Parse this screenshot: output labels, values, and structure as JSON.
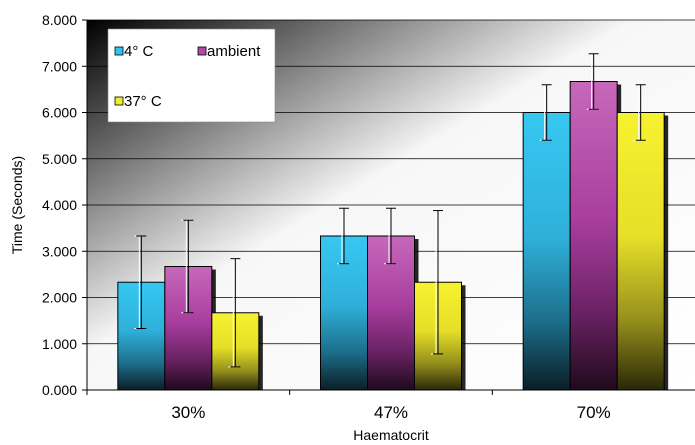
{
  "chart_data": {
    "type": "bar",
    "title": "",
    "xlabel": "Haematocrit",
    "ylabel": "Time (Seconds)",
    "ylim": [
      0,
      8
    ],
    "yticks": [
      "0.000",
      "1.000",
      "2.000",
      "3.000",
      "4.000",
      "5.000",
      "6.000",
      "7.000",
      "8.000"
    ],
    "categories": [
      "30%",
      "47%",
      "70%"
    ],
    "grid": true,
    "legend_position": "top-left",
    "series": [
      {
        "name": "4° C",
        "color": "#2ec4ee",
        "values": [
          2.33,
          3.33,
          6.0
        ],
        "errors": [
          1.0,
          0.6,
          0.6
        ]
      },
      {
        "name": "ambient",
        "color": "#b14aa6",
        "values": [
          2.67,
          3.33,
          6.67
        ],
        "errors": [
          1.0,
          0.6,
          0.6
        ]
      },
      {
        "name": "37° C",
        "color": "#f1ec28",
        "values": [
          1.67,
          2.33,
          6.0
        ],
        "errors": [
          1.17,
          1.55,
          0.6
        ]
      }
    ]
  }
}
